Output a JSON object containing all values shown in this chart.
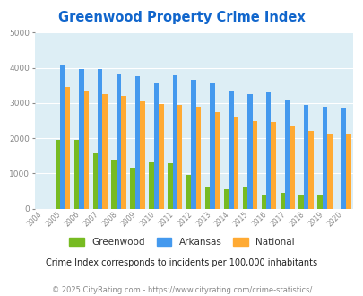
{
  "title": "Greenwood Property Crime Index",
  "years": [
    "2004",
    "2005",
    "2006",
    "2007",
    "2008",
    "2009",
    "2010",
    "2011",
    "2012",
    "2013",
    "2014",
    "2015",
    "2016",
    "2017",
    "2018",
    "2019",
    "2020"
  ],
  "greenwood": [
    0,
    1940,
    1940,
    1560,
    1380,
    1150,
    1310,
    1290,
    970,
    630,
    560,
    610,
    410,
    450,
    410,
    410,
    0
  ],
  "arkansas": [
    0,
    4060,
    3970,
    3970,
    3840,
    3770,
    3560,
    3780,
    3660,
    3580,
    3360,
    3250,
    3290,
    3100,
    2950,
    2900,
    2880
  ],
  "national": [
    0,
    3450,
    3350,
    3250,
    3210,
    3040,
    2960,
    2940,
    2890,
    2730,
    2610,
    2490,
    2460,
    2370,
    2200,
    2130,
    2120
  ],
  "greenwood_color": "#77bb22",
  "arkansas_color": "#4499ee",
  "national_color": "#ffaa33",
  "bg_color": "#ddeef5",
  "title_color": "#1166cc",
  "ylim": [
    0,
    5000
  ],
  "yticks": [
    0,
    1000,
    2000,
    3000,
    4000,
    5000
  ],
  "subtitle": "Crime Index corresponds to incidents per 100,000 inhabitants",
  "footer": "© 2025 CityRating.com - https://www.cityrating.com/crime-statistics/",
  "subtitle_color": "#222222",
  "footer_color": "#888888"
}
